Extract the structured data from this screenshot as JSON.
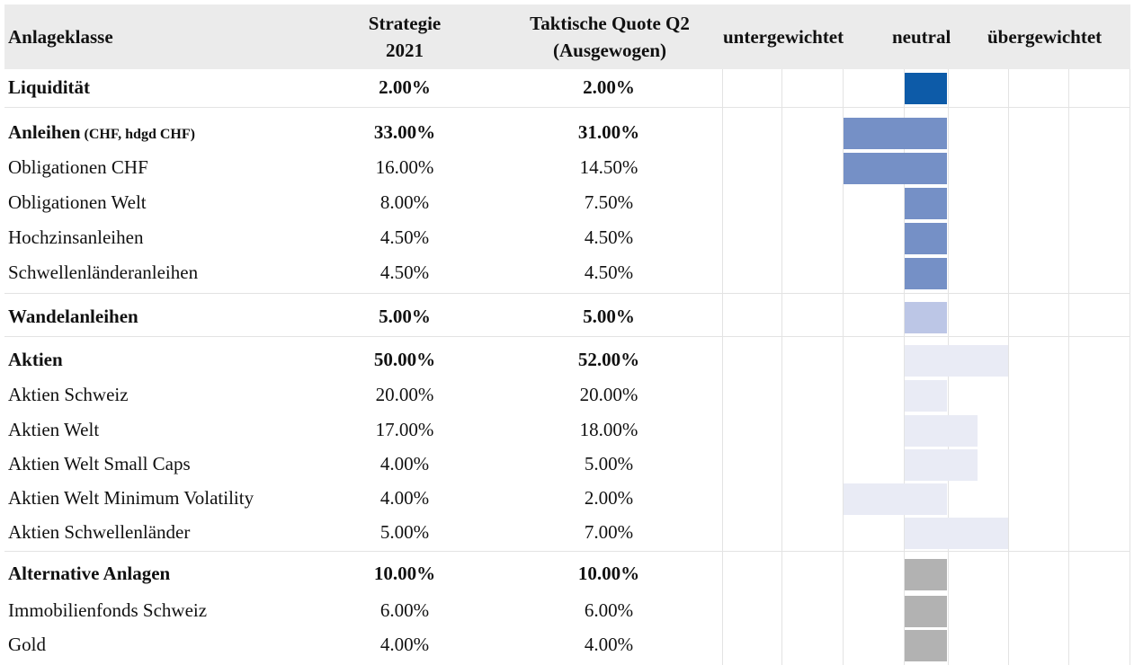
{
  "header": {
    "col1": "Anlageklasse",
    "col2_line1": "Strategie",
    "col2_line2": "2021",
    "col3_line1": "Taktische Quote Q2",
    "col3_line2": "(Ausgewogen)",
    "scale_under": "untergewichtet",
    "scale_neutral": "neutral",
    "scale_over": "übergewichtet"
  },
  "colors": {
    "liquiditaet": "#0d5ba8",
    "anleihen": "#7590c6",
    "wandel": "#bcc6e6",
    "aktien": "#e9ebf5",
    "alternativ": "#b2b2b2"
  },
  "chart_data": {
    "type": "table",
    "columns": [
      "Anlageklasse",
      "Strategie 2021",
      "Taktische Quote Q2 (Ausgewogen)"
    ],
    "scale_labels": [
      "untergewichtet",
      "neutral",
      "übergewichtet"
    ],
    "rows": [
      {
        "label": "Liquidität",
        "bold": true,
        "strategie": "2.00%",
        "taktisch": "2.00%",
        "tilt": 0,
        "color": "liquiditaet"
      },
      {
        "label": "Anleihen",
        "sub": "(CHF, hdgd CHF)",
        "bold": true,
        "strategie": "33.00%",
        "taktisch": "31.00%",
        "tilt": -2,
        "color": "anleihen"
      },
      {
        "label": "Obligationen CHF",
        "bold": false,
        "strategie": "16.00%",
        "taktisch": "14.50%",
        "tilt": -2,
        "color": "anleihen"
      },
      {
        "label": "Obligationen Welt",
        "bold": false,
        "strategie": "8.00%",
        "taktisch": "7.50%",
        "tilt": 0,
        "color": "anleihen"
      },
      {
        "label": "Hochzinsanleihen",
        "bold": false,
        "strategie": "4.50%",
        "taktisch": "4.50%",
        "tilt": 0,
        "color": "anleihen"
      },
      {
        "label": "Schwellenländeranleihen",
        "bold": false,
        "strategie": "4.50%",
        "taktisch": "4.50%",
        "tilt": 0,
        "color": "anleihen"
      },
      {
        "label": "Wandelanleihen",
        "bold": true,
        "strategie": "5.00%",
        "taktisch": "5.00%",
        "tilt": 0,
        "color": "wandel"
      },
      {
        "label": "Aktien",
        "bold": true,
        "strategie": "50.00%",
        "taktisch": "52.00%",
        "tilt": 2,
        "color": "aktien"
      },
      {
        "label": "Aktien Schweiz",
        "bold": false,
        "strategie": "20.00%",
        "taktisch": "20.00%",
        "tilt": 0,
        "color": "aktien"
      },
      {
        "label": "Aktien Welt",
        "bold": false,
        "strategie": "17.00%",
        "taktisch": "18.00%",
        "tilt": 1,
        "color": "aktien"
      },
      {
        "label": "Aktien Welt Small Caps",
        "bold": false,
        "strategie": "4.00%",
        "taktisch": "5.00%",
        "tilt": 1,
        "color": "aktien"
      },
      {
        "label": "Aktien Welt Minimum Volatility",
        "bold": false,
        "strategie": "4.00%",
        "taktisch": "2.00%",
        "tilt": -2,
        "color": "aktien"
      },
      {
        "label": "Aktien Schwellenländer",
        "bold": false,
        "strategie": "5.00%",
        "taktisch": "7.00%",
        "tilt": 2,
        "color": "aktien"
      },
      {
        "label": "Alternative Anlagen",
        "bold": true,
        "strategie": "10.00%",
        "taktisch": "10.00%",
        "tilt": 0,
        "color": "alternativ"
      },
      {
        "label": "Immobilienfonds Schweiz",
        "bold": false,
        "strategie": "6.00%",
        "taktisch": "6.00%",
        "tilt": 0,
        "color": "alternativ"
      },
      {
        "label": "Gold",
        "bold": false,
        "strategie": "4.00%",
        "taktisch": "4.00%",
        "tilt": 0,
        "color": "alternativ"
      }
    ]
  }
}
